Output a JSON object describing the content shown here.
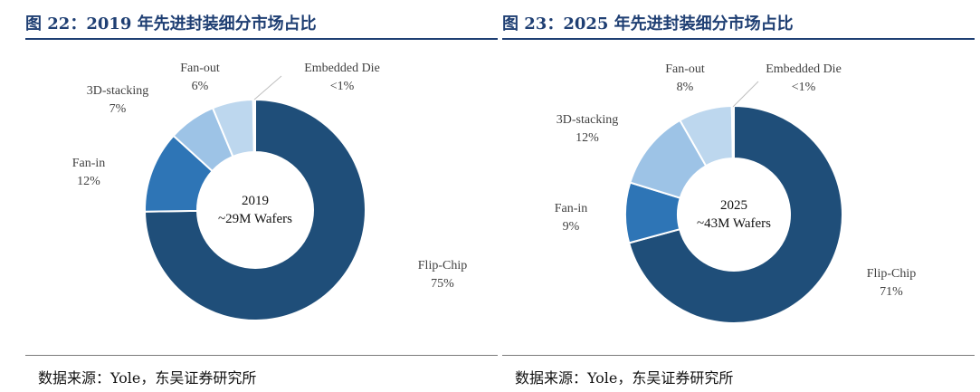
{
  "source_label": "数据来源：Yole，东吴证券研究所",
  "chart_data": [
    {
      "type": "pie",
      "figure_title": "图 22：2019 年先进封装细分市场占比",
      "center_label": [
        "2019",
        "~29M Wafers"
      ],
      "slices": [
        {
          "name": "Flip-Chip",
          "value": 75,
          "display": "75%",
          "color": "#1f4e79"
        },
        {
          "name": "Fan-in",
          "value": 12,
          "display": "12%",
          "color": "#2e75b6"
        },
        {
          "name": "3D-stacking",
          "value": 7,
          "display": "7%",
          "color": "#9dc3e6"
        },
        {
          "name": "Fan-out",
          "value": 6,
          "display": "6%",
          "color": "#bdd7ee"
        },
        {
          "name": "Embedded Die",
          "value": 0.3,
          "display": "<1%",
          "color": "#deebf7"
        }
      ]
    },
    {
      "type": "pie",
      "figure_title": "图 23：2025 年先进封装细分市场占比",
      "center_label": [
        "2025",
        "~43M Wafers"
      ],
      "slices": [
        {
          "name": "Flip-Chip",
          "value": 71,
          "display": "71%",
          "color": "#1f4e79"
        },
        {
          "name": "Fan-in",
          "value": 9,
          "display": "9%",
          "color": "#2e75b6"
        },
        {
          "name": "3D-stacking",
          "value": 12,
          "display": "12%",
          "color": "#9dc3e6"
        },
        {
          "name": "Fan-out",
          "value": 8,
          "display": "8%",
          "color": "#bdd7ee"
        },
        {
          "name": "Embedded Die",
          "value": 0.3,
          "display": "<1%",
          "color": "#deebf7"
        }
      ]
    }
  ]
}
